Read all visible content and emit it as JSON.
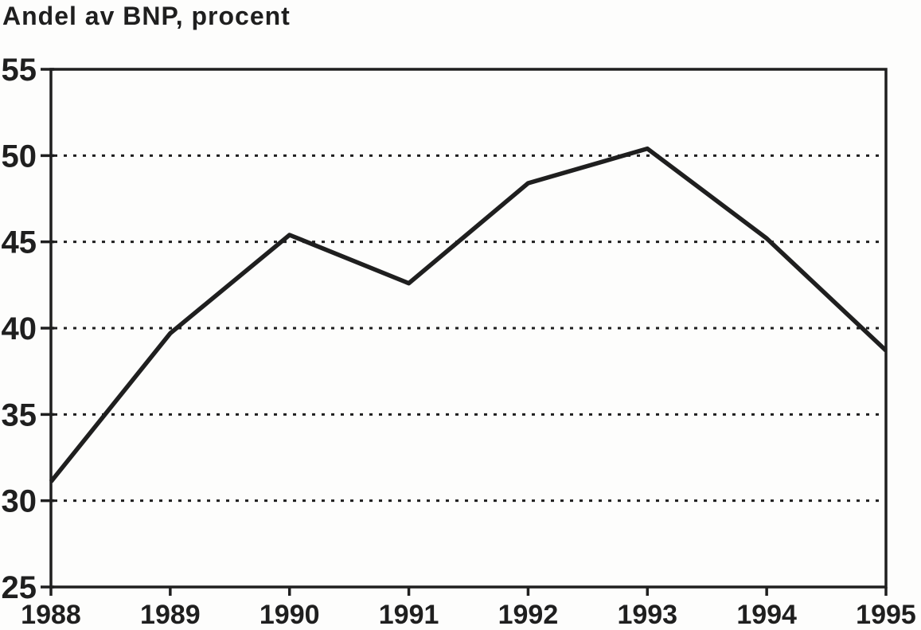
{
  "page": {
    "background": "#fdfdfc",
    "ink": "#1f1f1f"
  },
  "chart_data": {
    "type": "line",
    "title": "Andel av BNP, procent",
    "xlabel": "",
    "ylabel": "",
    "x": [
      1988,
      1989,
      1990,
      1991,
      1992,
      1993,
      1994,
      1995
    ],
    "x_labels": [
      "1988",
      "1989",
      "1990",
      "1991",
      "1992",
      "1993",
      "1994",
      "1995"
    ],
    "series": [
      {
        "name": "Andel av BNP, procent",
        "values": [
          31.1,
          39.7,
          45.4,
          42.6,
          48.4,
          50.4,
          45.2,
          38.7
        ]
      }
    ],
    "ylim": [
      25,
      55
    ],
    "yticks": [
      25,
      30,
      35,
      40,
      45,
      50,
      55
    ],
    "gridlines_y": [
      30,
      35,
      40,
      45,
      50
    ],
    "grid_style": "dotted",
    "legend_position": "none",
    "frame": "box"
  }
}
